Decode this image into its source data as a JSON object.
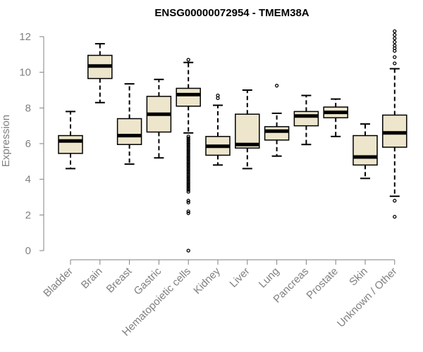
{
  "chart_data": {
    "type": "boxplot",
    "title": "ENSG00000072954 - TMEM38A",
    "xlabel": "",
    "ylabel": "Expression",
    "ylim": [
      0,
      12
    ],
    "yticks": [
      0,
      2,
      4,
      6,
      8,
      10,
      12
    ],
    "box_color": "#ede6cc",
    "categories": [
      "Bladder",
      "Brain",
      "Breast",
      "Gastric",
      "Hematopoietic cells",
      "Kidney",
      "Liver",
      "Lung",
      "Pancreas",
      "Prostate",
      "Skin",
      "Unknown / Other"
    ],
    "boxes": [
      {
        "label": "Bladder",
        "min": 4.6,
        "q1": 5.45,
        "median": 6.15,
        "q3": 6.45,
        "max": 7.8,
        "outliers": []
      },
      {
        "label": "Brain",
        "min": 8.3,
        "q1": 9.65,
        "median": 10.35,
        "q3": 10.95,
        "max": 11.6,
        "outliers": []
      },
      {
        "label": "Breast",
        "min": 4.85,
        "q1": 5.95,
        "median": 6.45,
        "q3": 7.4,
        "max": 9.35,
        "outliers": []
      },
      {
        "label": "Gastric",
        "min": 5.2,
        "q1": 6.65,
        "median": 7.65,
        "q3": 8.65,
        "max": 9.6,
        "outliers": []
      },
      {
        "label": "Hematopoietic cells",
        "min": 6.6,
        "q1": 8.1,
        "median": 8.75,
        "q3": 9.1,
        "max": 10.55,
        "outliers": [
          10.7,
          6.4,
          6.3,
          6.2,
          6.1,
          6.0,
          5.9,
          5.8,
          5.7,
          5.6,
          5.5,
          5.4,
          5.3,
          5.2,
          5.1,
          5.0,
          4.9,
          4.8,
          4.7,
          4.6,
          4.5,
          4.4,
          4.3,
          4.2,
          4.1,
          4.0,
          3.9,
          3.8,
          3.7,
          3.6,
          3.5,
          3.4,
          3.3,
          2.8,
          2.7,
          2.2,
          2.1,
          0.0
        ]
      },
      {
        "label": "Kidney",
        "min": 4.8,
        "q1": 5.35,
        "median": 5.85,
        "q3": 6.4,
        "max": 8.15,
        "outliers": [
          8.55,
          8.7
        ]
      },
      {
        "label": "Liver",
        "min": 4.6,
        "q1": 5.75,
        "median": 5.95,
        "q3": 7.65,
        "max": 9.0,
        "outliers": []
      },
      {
        "label": "Lung",
        "min": 5.3,
        "q1": 6.2,
        "median": 6.7,
        "q3": 6.95,
        "max": 7.7,
        "outliers": [
          9.25
        ]
      },
      {
        "label": "Pancreas",
        "min": 5.95,
        "q1": 7.0,
        "median": 7.55,
        "q3": 7.8,
        "max": 8.7,
        "outliers": []
      },
      {
        "label": "Prostate",
        "min": 6.4,
        "q1": 7.45,
        "median": 7.75,
        "q3": 8.05,
        "max": 8.5,
        "outliers": []
      },
      {
        "label": "Skin",
        "min": 4.05,
        "q1": 4.8,
        "median": 5.25,
        "q3": 6.45,
        "max": 7.1,
        "outliers": []
      },
      {
        "label": "Unknown / Other",
        "min": 3.05,
        "q1": 5.8,
        "median": 6.6,
        "q3": 7.6,
        "max": 10.2,
        "outliers": [
          12.3,
          12.1,
          11.9,
          11.7,
          11.5,
          11.35,
          11.2,
          10.85,
          10.5,
          2.8,
          1.9
        ]
      }
    ]
  }
}
